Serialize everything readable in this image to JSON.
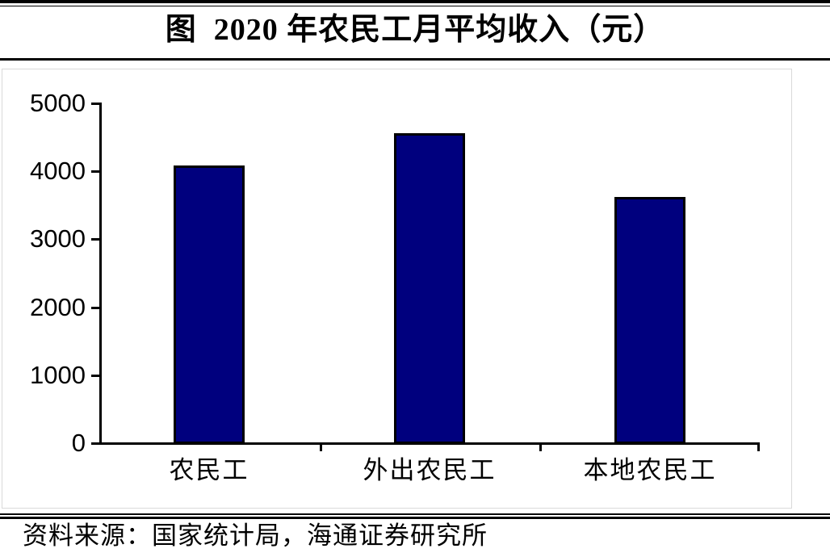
{
  "figure": {
    "title": "图  2020 年农民工月平均收入（元）",
    "source": "资料来源：国家统计局，海通证券研究所"
  },
  "colors": {
    "background": "#FFFFFF",
    "bar_fill": "#00007E",
    "bar_border": "#000000",
    "axis": "#000000",
    "frame_border": "#D9D9D9",
    "text": "#000000"
  },
  "chart_data": {
    "type": "bar",
    "title": "图 2020 年农民工月平均收入（元）",
    "categories": [
      "农民工",
      "外出农民工",
      "本地农民工"
    ],
    "values": [
      4072,
      4549,
      3606
    ],
    "xlabel": "",
    "ylabel": "",
    "unit": "元",
    "ylim": [
      0,
      5000
    ],
    "yticks": [
      0,
      1000,
      2000,
      3000,
      4000,
      5000
    ],
    "grid": false,
    "legend": false
  }
}
